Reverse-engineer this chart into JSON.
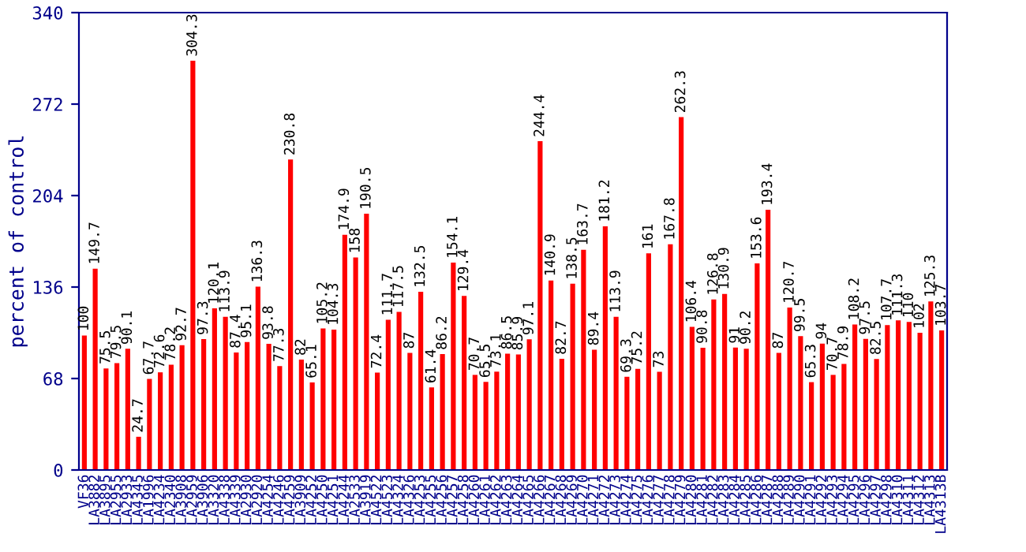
{
  "chart_data": {
    "type": "bar",
    "ylabel": "percent of control",
    "categories": [
      "VF36",
      "LA3882",
      "LA3895",
      "LA2955",
      "LA2933",
      "LA4345",
      "LA1996",
      "LA4234",
      "LA2340",
      "LA3908",
      "LA2959",
      "LA3906",
      "LA3320",
      "LA4338",
      "LA4339",
      "LA2930",
      "LA2920",
      "LA4254",
      "LA4246",
      "LA4259",
      "LA3909",
      "LA4252",
      "LA4250",
      "LA4251",
      "LA4244",
      "LA2533",
      "LA3919",
      "LA4522",
      "LA4523",
      "LA4324",
      "LA4326",
      "LA4253",
      "LA4255",
      "LA4256",
      "LA4257",
      "LA4258",
      "LA4260",
      "LA4261",
      "LA4262",
      "LA4263",
      "LA4264",
      "LA4265",
      "LA4266",
      "LA4267",
      "LA4268",
      "LA4269",
      "LA4270",
      "LA4271",
      "LA4272",
      "LA4273",
      "LA4274",
      "LA4275",
      "LA4276",
      "LA4277",
      "LA4278",
      "LA4279",
      "LA4280",
      "LA4281",
      "LA4282",
      "LA4283",
      "LA4284",
      "LA4285",
      "LA4286",
      "LA4287",
      "LA4288",
      "LA4289",
      "LA4290",
      "LA4291",
      "LA4292",
      "LA4293",
      "LA4294",
      "LA4295",
      "LA4296",
      "LA4297",
      "LA4298",
      "LA4310",
      "LA4311",
      "LA4312",
      "LA4313",
      "LA4313B"
    ],
    "values": [
      100,
      149.7,
      75.5,
      79.5,
      90.1,
      24.7,
      67.7,
      72.6,
      78.2,
      92.7,
      304.3,
      97.3,
      120.1,
      113.9,
      87.4,
      95.1,
      136.3,
      93.8,
      77.3,
      230.8,
      82,
      65.1,
      105.2,
      104.3,
      174.9,
      158,
      190.5,
      72.4,
      111.7,
      117.5,
      87,
      132.5,
      61.4,
      86.2,
      154.1,
      129.4,
      70.7,
      65.5,
      73.1,
      86.5,
      85.9,
      97.1,
      244.4,
      140.9,
      82.7,
      138.5,
      163.7,
      89.4,
      181.2,
      113.9,
      69.3,
      75.2,
      161,
      73,
      167.8,
      262.3,
      106.4,
      90.8,
      126.8,
      130.9,
      91,
      90.2,
      153.6,
      193.4,
      87,
      120.7,
      99.5,
      65.3,
      94,
      70.7,
      78.9,
      108.2,
      97.5,
      82.5,
      107.7,
      111.3,
      110,
      102,
      125.3,
      103.7
    ],
    "color": "#ff0000",
    "data_labels": true,
    "ylim": [
      0,
      340
    ],
    "yticks": [
      0,
      68,
      136,
      204,
      272,
      340
    ],
    "grid": false,
    "legend": false
  }
}
